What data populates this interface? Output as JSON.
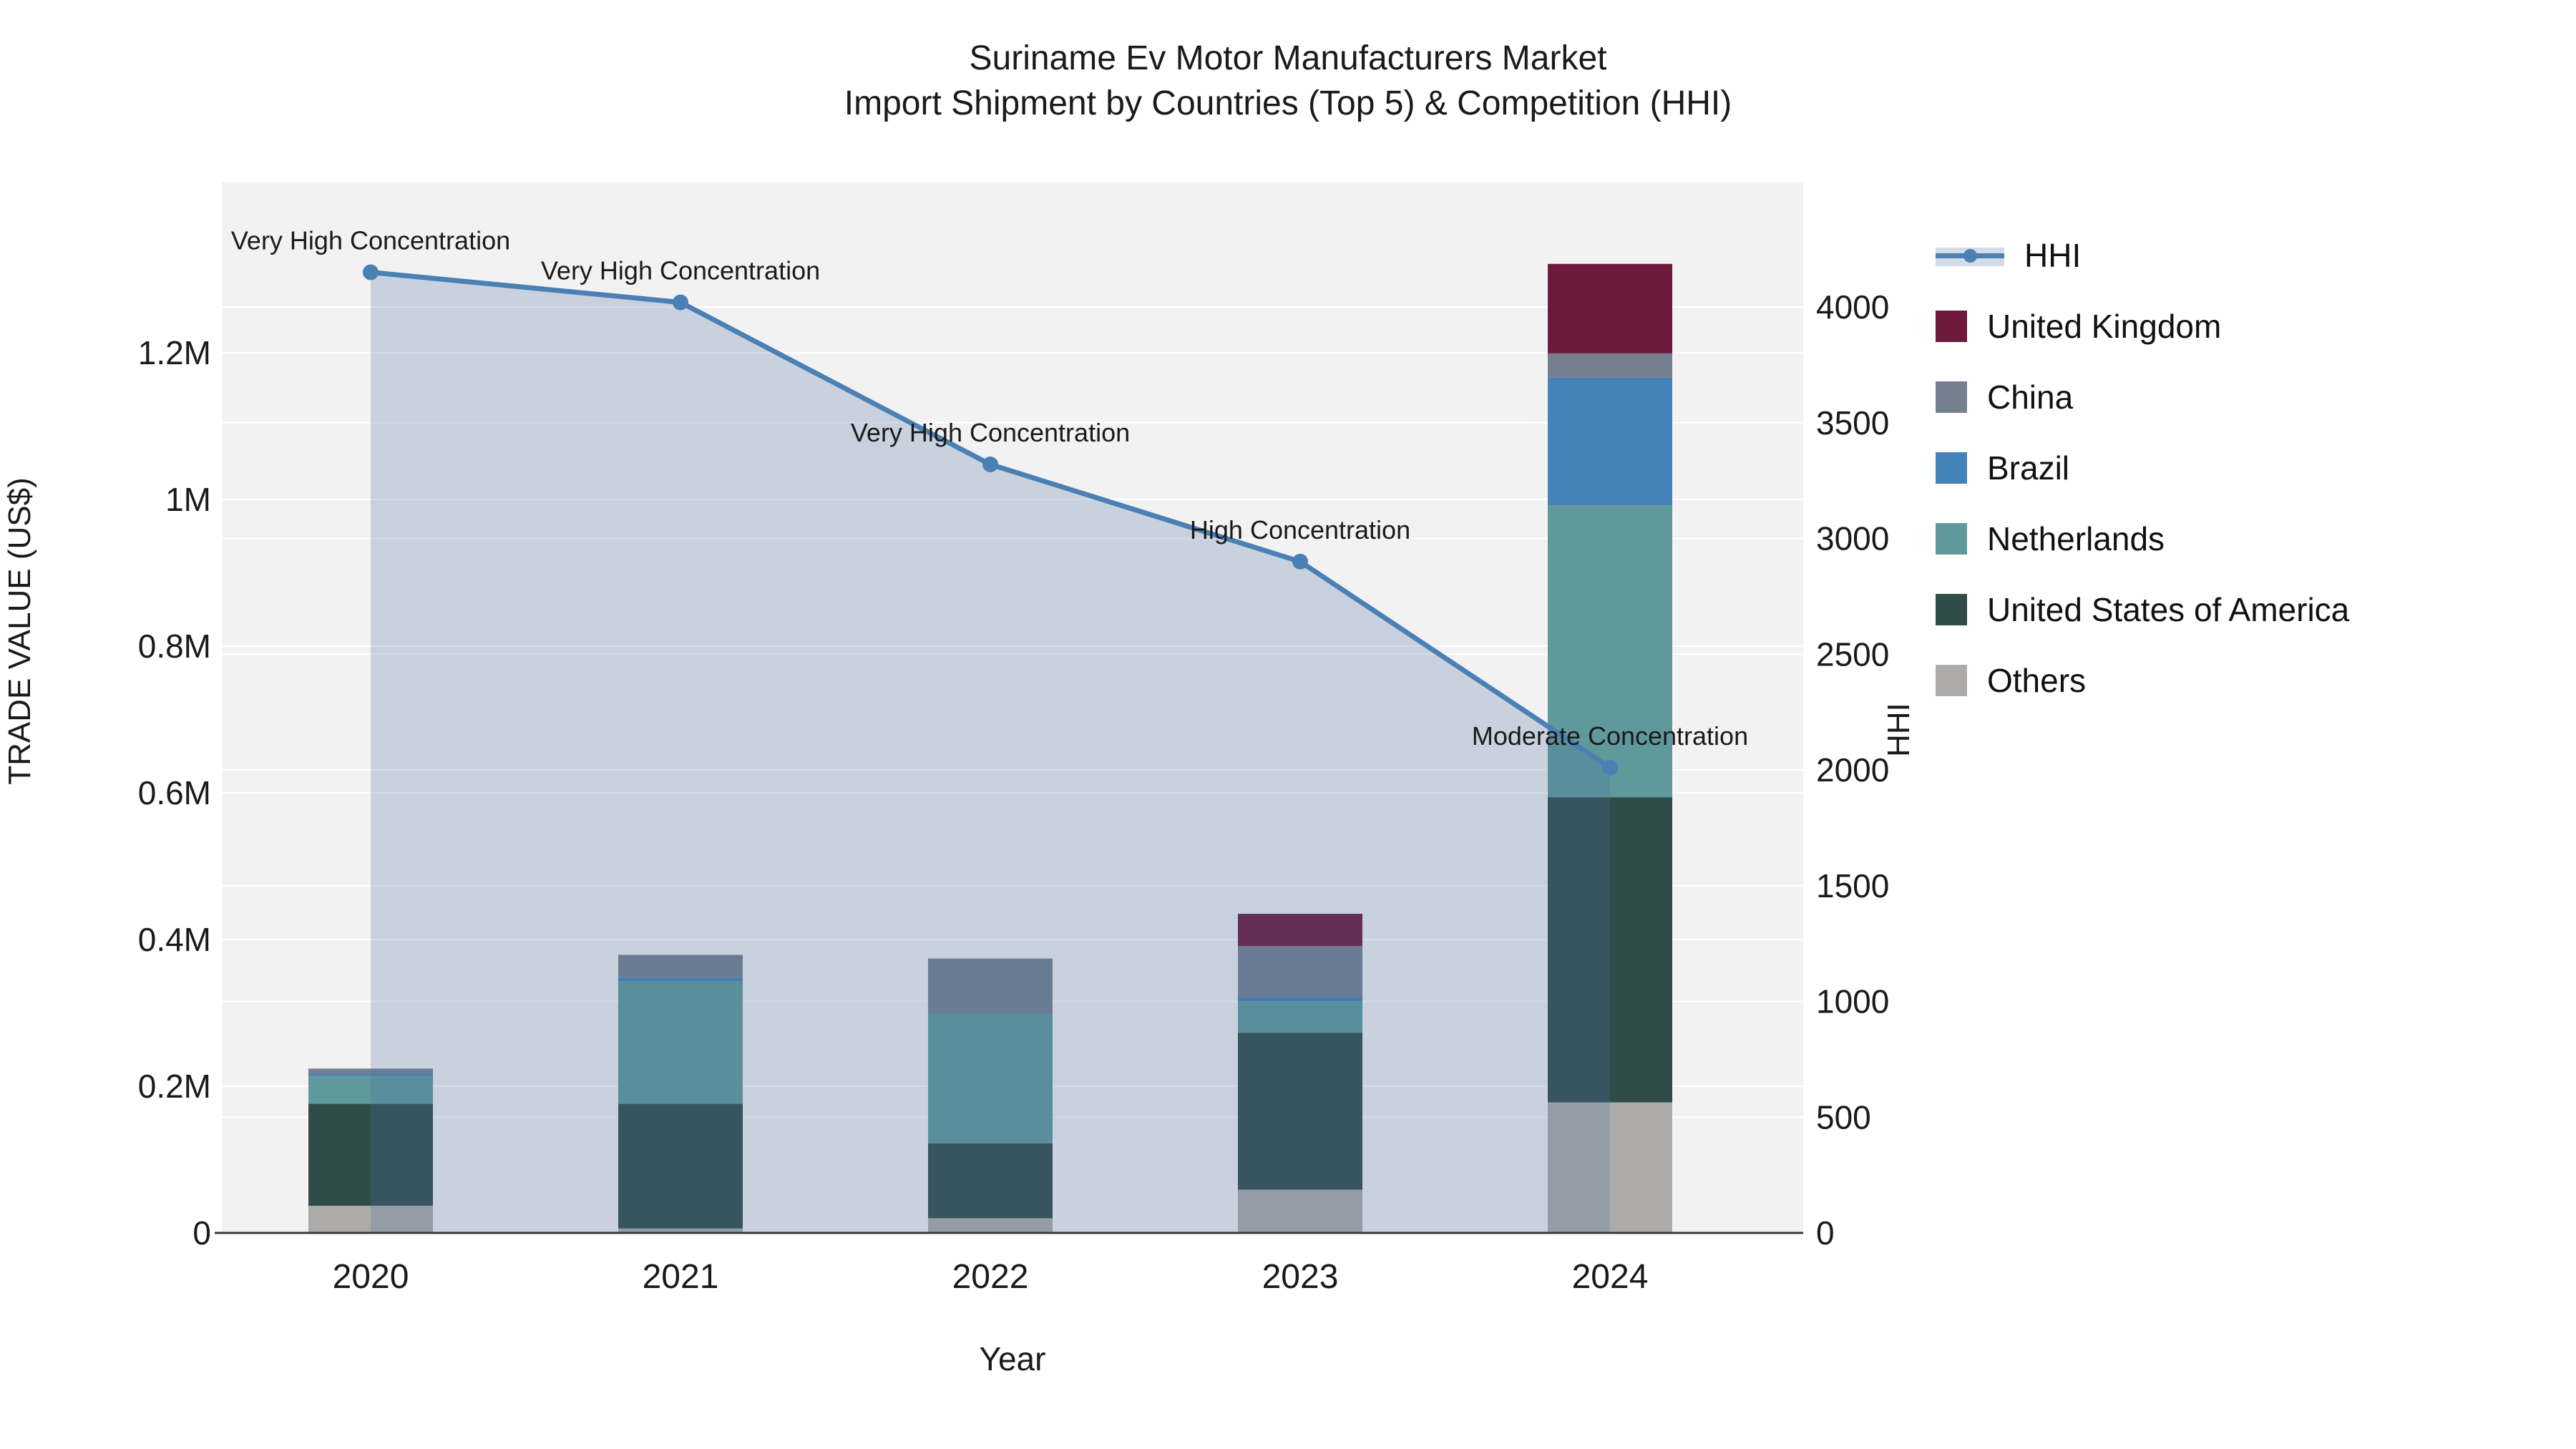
{
  "title": {
    "line1": "Suriname Ev Motor Manufacturers Market",
    "line2": "Import Shipment by Countries (Top 5) & Competition (HHI)"
  },
  "chart_data": {
    "type": "bar+line",
    "title": "Suriname Ev Motor Manufacturers Market Import Shipment by Countries (Top 5) & Competition (HHI)",
    "xlabel": "Year",
    "ylabel_left": "TRADE VALUE (US$)",
    "ylabel_right": "HHI",
    "categories": [
      "2020",
      "2021",
      "2022",
      "2023",
      "2024"
    ],
    "stack_order_bottom_to_top": [
      "Others",
      "United States of America",
      "Netherlands",
      "Brazil",
      "China",
      "United Kingdom"
    ],
    "series": [
      {
        "name": "United Kingdom",
        "color": "#6d1a3c",
        "values": [
          0,
          0,
          0,
          44000,
          122000
        ]
      },
      {
        "name": "China",
        "color": "#75808f",
        "values": [
          7000,
          31000,
          75000,
          70000,
          33000
        ]
      },
      {
        "name": "Brazil",
        "color": "#4482ba",
        "values": [
          3000,
          5000,
          0,
          5000,
          174000
        ]
      },
      {
        "name": "Netherlands",
        "color": "#5f999c",
        "values": [
          38000,
          167000,
          177000,
          43000,
          398000
        ]
      },
      {
        "name": "United States of America",
        "color": "#2f4c49",
        "values": [
          139000,
          170000,
          102000,
          214000,
          416000
        ]
      },
      {
        "name": "Others",
        "color": "#adaba9",
        "values": [
          37000,
          6000,
          20000,
          59000,
          178000
        ]
      }
    ],
    "hhi_line": {
      "name": "HHI",
      "color": "#4a80b4",
      "fill_color": "rgba(74,112,160,0.25)",
      "values": [
        4150,
        4020,
        3320,
        2900,
        2010
      ],
      "annotations": [
        "Very High Concentration",
        "Very High Concentration",
        "Very High Concentration",
        "High Concentration",
        "Moderate Concentration"
      ]
    },
    "y_left_ticks": [
      {
        "v": 0,
        "label": "0"
      },
      {
        "v": 200000,
        "label": "0.2M"
      },
      {
        "v": 400000,
        "label": "0.4M"
      },
      {
        "v": 600000,
        "label": "0.6M"
      },
      {
        "v": 800000,
        "label": "0.8M"
      },
      {
        "v": 1000000,
        "label": "1M"
      },
      {
        "v": 1200000,
        "label": "1.2M"
      }
    ],
    "y_right_ticks": [
      {
        "v": 0,
        "label": "0"
      },
      {
        "v": 500,
        "label": "500"
      },
      {
        "v": 1000,
        "label": "1000"
      },
      {
        "v": 1500,
        "label": "1500"
      },
      {
        "v": 2000,
        "label": "2000"
      },
      {
        "v": 2500,
        "label": "2500"
      },
      {
        "v": 3000,
        "label": "3000"
      },
      {
        "v": 3500,
        "label": "3500"
      },
      {
        "v": 4000,
        "label": "4000"
      }
    ],
    "ylim_left": [
      0,
      1432000
    ],
    "ylim_right": [
      0,
      4538
    ],
    "grid": true,
    "plot_bg": "#f2f2f2",
    "grid_color": "#ffffff",
    "legend_position": "right",
    "legend": [
      "HHI",
      "United Kingdom",
      "China",
      "Brazil",
      "Netherlands",
      "United States of America",
      "Others"
    ]
  }
}
